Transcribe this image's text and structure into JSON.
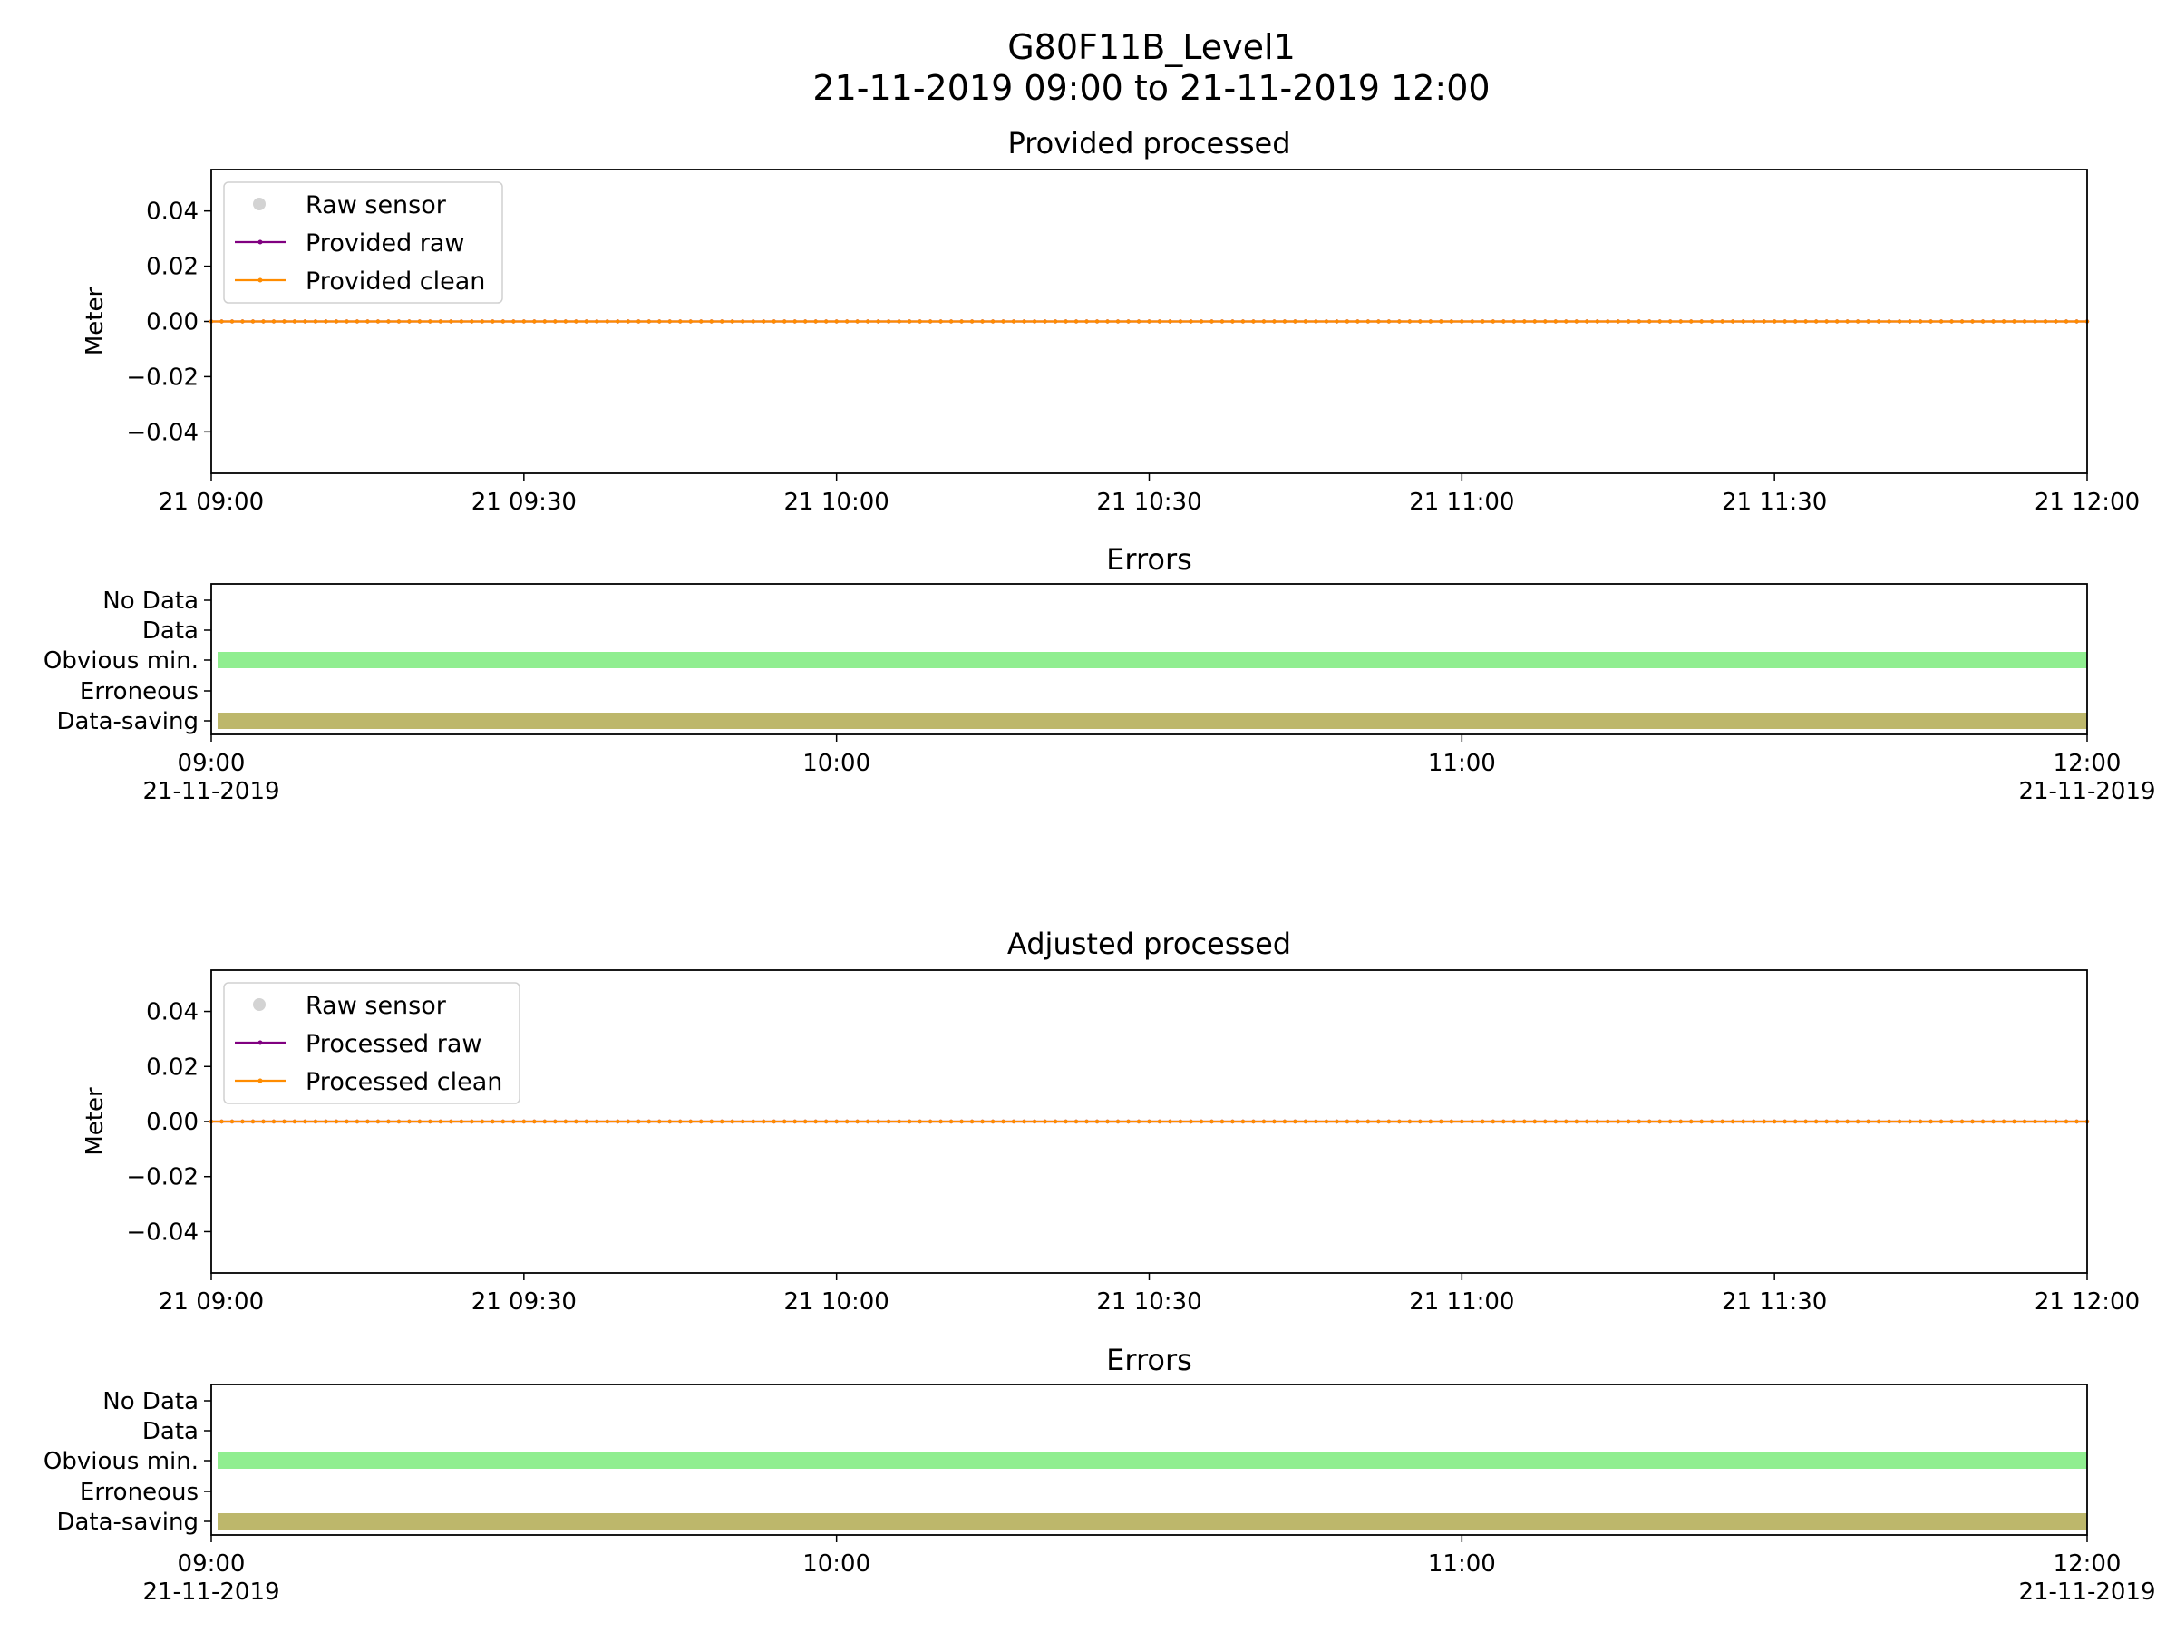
{
  "figure": {
    "title_line1": "G80F11B_Level1",
    "title_line2": "21-11-2019 09:00 to 21-11-2019 12:00"
  },
  "colors": {
    "raw_sensor": "#d3d3d3",
    "provided_raw": "#800080",
    "provided_clean": "#ff8c00",
    "obvious_min": "#90ee90",
    "data_saving": "#bdb76b",
    "axes": "#000000"
  },
  "chart_data": [
    {
      "type": "line",
      "title": "Provided processed",
      "ylabel": "Meter",
      "xlabel": "",
      "xlim": [
        "21-11-2019 09:00",
        "21-11-2019 12:00"
      ],
      "ylim": [
        -0.055,
        0.055
      ],
      "yticks": [
        -0.04,
        -0.02,
        0.0,
        0.02,
        0.04
      ],
      "ytick_labels": [
        "−0.04",
        "−0.02",
        "0.00",
        "0.02",
        "0.04"
      ],
      "xtick_labels": [
        "21 09:00",
        "21 09:30",
        "21 10:00",
        "21 10:30",
        "21 11:00",
        "21 11:30",
        "21 12:00"
      ],
      "sample_interval_minutes": 1,
      "legend_location": "upper-left",
      "series": [
        {
          "name": "Raw sensor",
          "style": "scatter",
          "values": []
        },
        {
          "name": "Provided raw",
          "style": "line-marker",
          "constant_value": 0.0
        },
        {
          "name": "Provided clean",
          "style": "line-marker",
          "constant_value": 0.0
        }
      ]
    },
    {
      "type": "bar",
      "title": "Errors",
      "categories": [
        "No Data",
        "Data",
        "Obvious min.",
        "Erroneous",
        "Data-saving"
      ],
      "xtick_labels": [
        "09:00\n21-11-2019",
        "10:00",
        "11:00",
        "12:00\n21-11-2019"
      ],
      "bands": [
        {
          "category": "Obvious min.",
          "start": "09:00",
          "end": "12:00"
        },
        {
          "category": "Data-saving",
          "start": "09:00",
          "end": "12:00"
        }
      ]
    },
    {
      "type": "line",
      "title": "Adjusted processed",
      "ylabel": "Meter",
      "xlabel": "",
      "xlim": [
        "21-11-2019 09:00",
        "21-11-2019 12:00"
      ],
      "ylim": [
        -0.055,
        0.055
      ],
      "yticks": [
        -0.04,
        -0.02,
        0.0,
        0.02,
        0.04
      ],
      "ytick_labels": [
        "−0.04",
        "−0.02",
        "0.00",
        "0.02",
        "0.04"
      ],
      "xtick_labels": [
        "21 09:00",
        "21 09:30",
        "21 10:00",
        "21 10:30",
        "21 11:00",
        "21 11:30",
        "21 12:00"
      ],
      "sample_interval_minutes": 1,
      "legend_location": "upper-left",
      "series": [
        {
          "name": "Raw sensor",
          "style": "scatter",
          "values": []
        },
        {
          "name": "Processed raw",
          "style": "line-marker",
          "constant_value": 0.0
        },
        {
          "name": "Processed clean",
          "style": "line-marker",
          "constant_value": 0.0
        }
      ]
    },
    {
      "type": "bar",
      "title": "Errors",
      "categories": [
        "No Data",
        "Data",
        "Obvious min.",
        "Erroneous",
        "Data-saving"
      ],
      "xtick_labels": [
        "09:00\n21-11-2019",
        "10:00",
        "11:00",
        "12:00\n21-11-2019"
      ],
      "bands": [
        {
          "category": "Obvious min.",
          "start": "09:00",
          "end": "12:00"
        },
        {
          "category": "Data-saving",
          "start": "09:00",
          "end": "12:00"
        }
      ]
    }
  ]
}
